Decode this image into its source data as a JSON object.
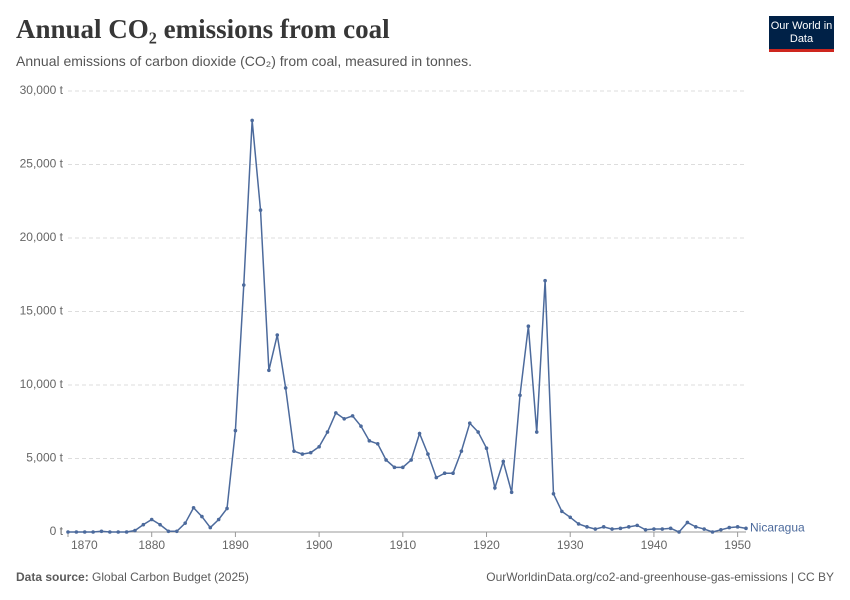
{
  "chart_data": {
    "type": "line",
    "title": "Annual CO₂ emissions from coal",
    "subtitle": "Annual emissions of carbon dioxide (CO₂) from coal, measured in tonnes.",
    "logo": "Our World in Data",
    "source_label": "Data source:",
    "source": "Global Carbon Budget (2025)",
    "attribution": "OurWorldinData.org/co2-and-greenhouse-gas-emissions | CC BY",
    "x": [
      1870,
      1871,
      1872,
      1873,
      1874,
      1875,
      1876,
      1877,
      1878,
      1879,
      1880,
      1881,
      1882,
      1883,
      1884,
      1885,
      1886,
      1887,
      1888,
      1889,
      1890,
      1891,
      1892,
      1893,
      1894,
      1895,
      1896,
      1897,
      1898,
      1899,
      1900,
      1901,
      1902,
      1903,
      1904,
      1905,
      1906,
      1907,
      1908,
      1909,
      1910,
      1911,
      1912,
      1913,
      1914,
      1915,
      1916,
      1917,
      1918,
      1919,
      1920,
      1921,
      1922,
      1923,
      1924,
      1925,
      1926,
      1927,
      1928,
      1929,
      1930,
      1931,
      1932,
      1933,
      1934,
      1935,
      1936,
      1937,
      1938,
      1939,
      1940,
      1941,
      1942,
      1943,
      1944,
      1945,
      1946,
      1947,
      1948,
      1949,
      1950,
      1951
    ],
    "series": [
      {
        "name": "Nicaragua",
        "color": "#4c6a9c",
        "values": [
          0,
          0,
          0,
          0,
          50,
          0,
          0,
          0,
          100,
          500,
          850,
          500,
          50,
          50,
          600,
          1650,
          1050,
          300,
          850,
          1600,
          6900,
          16800,
          28000,
          21900,
          11000,
          13400,
          9800,
          5500,
          5300,
          5400,
          5800,
          6800,
          8100,
          7700,
          7900,
          7200,
          6200,
          6000,
          4900,
          4400,
          4400,
          4900,
          6700,
          5300,
          3700,
          4000,
          4000,
          5500,
          7400,
          6800,
          5700,
          3000,
          4800,
          2700,
          9300,
          14000,
          6800,
          17100,
          2600,
          1400,
          1000,
          550,
          350,
          200,
          350,
          200,
          250,
          350,
          450,
          150,
          200,
          200,
          250,
          0,
          650,
          350,
          200,
          0,
          150,
          300,
          350,
          250
        ]
      }
    ],
    "xlim": [
      1870,
      1951
    ],
    "xticks": [
      1870,
      1880,
      1890,
      1900,
      1910,
      1920,
      1930,
      1940,
      1950
    ],
    "ylim": [
      0,
      30000
    ],
    "yticks": [
      {
        "value": 0,
        "label": "0 t"
      },
      {
        "value": 5000,
        "label": "5,000 t"
      },
      {
        "value": 10000,
        "label": "10,000 t"
      },
      {
        "value": 15000,
        "label": "15,000 t"
      },
      {
        "value": 20000,
        "label": "20,000 t"
      },
      {
        "value": 25000,
        "label": "25,000 t"
      },
      {
        "value": 30000,
        "label": "30,000 t"
      }
    ],
    "grid": true
  }
}
